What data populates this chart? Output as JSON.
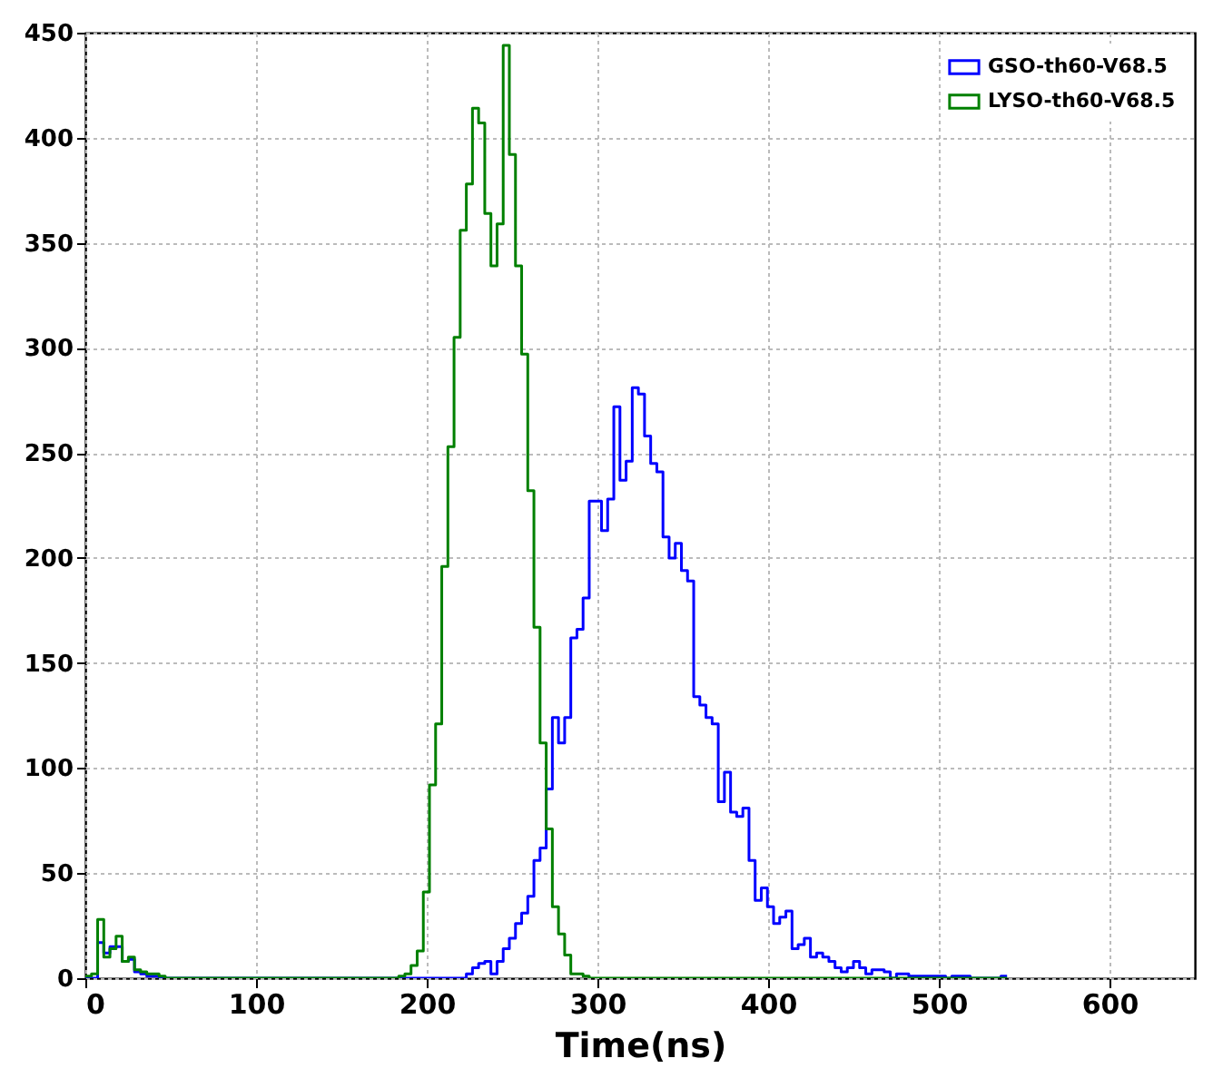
{
  "chart_data": {
    "type": "histogram",
    "xlabel": "Time(ns)",
    "bins": [
      0,
      3.6,
      7.2,
      10.8,
      14.4,
      18,
      21.6,
      25.2,
      28.8,
      32.4,
      36,
      39.6,
      43.2,
      46.8,
      50.4,
      54,
      57.6,
      61.2,
      64.8,
      68.4,
      72,
      75.6,
      79.2,
      82.8,
      86.4,
      90,
      93.6,
      97.2,
      100.8,
      104.4,
      108,
      111.6,
      115.2,
      118.8,
      122.4,
      126,
      129.6,
      133.2,
      136.8,
      140.4,
      144,
      147.6,
      151.2,
      154.8,
      158.4,
      162,
      165.6,
      169.2,
      172.8,
      176.4,
      180,
      183.6,
      187.2,
      190.8,
      194.4,
      198,
      201.6,
      205.2,
      208.8,
      212.4,
      216,
      219.6,
      223.2,
      226.8,
      230.4,
      234,
      237.6,
      241.2,
      244.8,
      248.4,
      252,
      255.6,
      259.2,
      262.8,
      266.4,
      270,
      273.6,
      277.2,
      280.8,
      284.4,
      288,
      291.6,
      295.2,
      298.8,
      302.4,
      306,
      309.6,
      313.2,
      316.8,
      320.4,
      324,
      327.6,
      331.2,
      334.8,
      338.4,
      342,
      345.6,
      349.2,
      352.8,
      356.4,
      360,
      363.6,
      367.2,
      370.8,
      374.4,
      378,
      381.6,
      385.2,
      388.8,
      392.4,
      396,
      399.6,
      403.2,
      406.8,
      410.4,
      414,
      417.6,
      421.2,
      424.8,
      428.4,
      432,
      435.6,
      439.2,
      442.8,
      446.4,
      450,
      453.6,
      457.2,
      460.8,
      464.4,
      468,
      471.6,
      475.2,
      478.8,
      482.4,
      486,
      489.6,
      493.2,
      496.8,
      500.4,
      504,
      507.6,
      511.2,
      514.8,
      518.4,
      522,
      525.6,
      529.2,
      532.8,
      536.4,
      540
    ],
    "series": [
      {
        "name": "GSO-th60-V68.5",
        "color": "#0000ff",
        "values": [
          0,
          0,
          17,
          12,
          15,
          15,
          8,
          9,
          3,
          2,
          1,
          1,
          0,
          0,
          0,
          0,
          0,
          0,
          0,
          0,
          0,
          0,
          0,
          0,
          0,
          0,
          0,
          0,
          0,
          0,
          0,
          0,
          0,
          0,
          0,
          0,
          0,
          0,
          0,
          0,
          0,
          0,
          0,
          0,
          0,
          0,
          0,
          0,
          0,
          0,
          0,
          0,
          0,
          0,
          0,
          0,
          0,
          0,
          0,
          0,
          0,
          0,
          2,
          5,
          7,
          8,
          2,
          8,
          14,
          19,
          26,
          31,
          39,
          56,
          62,
          90,
          124,
          112,
          124,
          162,
          166,
          181,
          227,
          227,
          213,
          228,
          272,
          237,
          246,
          281,
          278,
          258,
          245,
          241,
          210,
          200,
          207,
          194,
          189,
          134,
          130,
          124,
          121,
          84,
          98,
          79,
          77,
          81,
          56,
          37,
          43,
          34,
          26,
          29,
          32,
          14,
          16,
          19,
          10,
          12,
          10,
          8,
          5,
          3,
          5,
          8,
          5,
          2,
          4,
          4,
          3,
          0,
          2,
          2,
          1,
          1,
          1,
          1,
          1,
          1,
          0,
          1,
          1,
          1,
          0,
          0,
          0,
          0,
          0,
          1
        ]
      },
      {
        "name": "LYSO-th60-V68.5",
        "color": "#008000",
        "values": [
          1,
          2,
          28,
          10,
          14,
          20,
          8,
          10,
          4,
          3,
          2,
          2,
          1,
          0,
          0,
          0,
          0,
          0,
          0,
          0,
          0,
          0,
          0,
          0,
          0,
          0,
          0,
          0,
          0,
          0,
          0,
          0,
          0,
          0,
          0,
          0,
          0,
          0,
          0,
          0,
          0,
          0,
          0,
          0,
          0,
          0,
          0,
          0,
          0,
          0,
          0,
          1,
          2,
          6,
          13,
          41,
          92,
          121,
          196,
          253,
          305,
          356,
          378,
          414,
          407,
          364,
          339,
          359,
          444,
          392,
          339,
          297,
          232,
          167,
          112,
          71,
          34,
          21,
          11,
          2,
          2,
          1,
          0,
          0,
          0,
          0,
          0,
          0,
          0,
          0,
          0,
          0,
          0,
          0,
          0,
          0,
          0,
          0,
          0,
          0,
          0,
          0,
          0,
          0,
          0,
          0,
          0,
          0,
          0,
          0,
          0,
          0,
          0,
          0,
          0,
          0,
          0,
          0,
          0,
          0,
          0,
          0,
          0,
          0,
          0,
          0,
          0,
          0,
          0,
          0,
          0,
          0,
          0,
          0,
          0,
          0,
          0,
          0,
          0,
          0,
          0,
          0,
          0,
          0,
          0,
          0,
          0,
          0,
          0,
          0
        ]
      }
    ],
    "xlim": [
      0,
      650
    ],
    "xticks": [
      0,
      100,
      200,
      300,
      400,
      500,
      600
    ],
    "ylim": [
      0,
      450
    ],
    "yticks": [
      0,
      50,
      100,
      150,
      200,
      250,
      300,
      350,
      400,
      450
    ],
    "grid": true,
    "legend": "top right"
  }
}
